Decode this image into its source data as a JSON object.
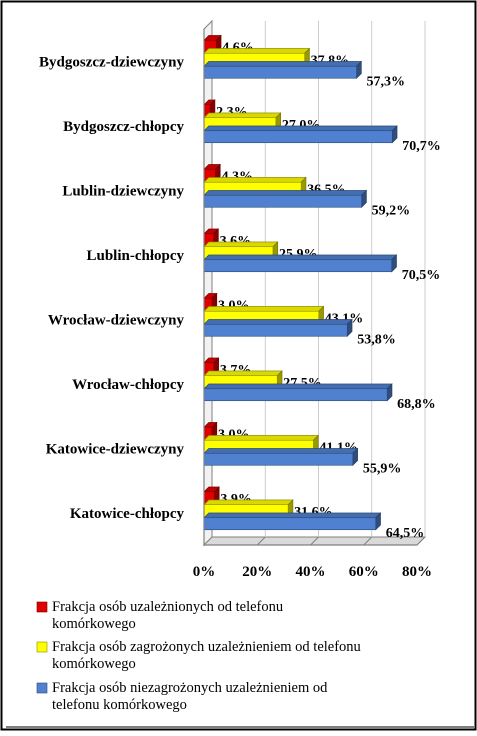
{
  "chart_data": {
    "type": "bar",
    "orientation": "horizontal",
    "style": "3d-clustered",
    "categories": [
      "Bydgoszcz-dziewczyny",
      "Bydgoszcz-chłopcy",
      "Lublin-dziewczyny",
      "Lublin-chłopcy",
      "Wrocław-dziewczyny",
      "Wrocław-chłopcy",
      "Katowice-dziewczyny",
      "Katowice-chłopcy"
    ],
    "series": [
      {
        "name": "Frakcja osób uzależnionych od telefonu komórkowego",
        "color": "#e00000",
        "values": [
          4.6,
          2.3,
          4.3,
          3.6,
          3.0,
          3.7,
          3.0,
          3.9
        ],
        "labels": [
          "4,6%",
          "2,3%",
          "4,3%",
          "3,6%",
          "3,0%",
          "3,7%",
          "3,0%",
          "3,9%"
        ]
      },
      {
        "name": "Frakcja osób zagrożonych uzależnieniem od telefonu komórkowego",
        "color": "#ffff00",
        "values": [
          37.8,
          27.0,
          36.5,
          25.9,
          43.1,
          27.5,
          41.1,
          31.6
        ],
        "labels": [
          "37,8%",
          "27,0%",
          "36,5%",
          "25,9%",
          "43,1%",
          "27,5%",
          "41,1%",
          "31,6%"
        ]
      },
      {
        "name": "Frakcja osób niezagrożonych uzależnieniem od telefonu komórkowego",
        "color": "#4f81d0",
        "values": [
          57.3,
          70.7,
          59.2,
          70.5,
          53.8,
          68.8,
          55.9,
          64.5
        ],
        "labels": [
          "57,3%",
          "70,7%",
          "59,2%",
          "70,5%",
          "53,8%",
          "68,8%",
          "55,9%",
          "64,5%"
        ]
      }
    ],
    "x_ticks": [
      "0%",
      "20%",
      "40%",
      "60%",
      "80%"
    ],
    "xlim": [
      0,
      80
    ],
    "grid": true,
    "legend_position": "bottom"
  }
}
